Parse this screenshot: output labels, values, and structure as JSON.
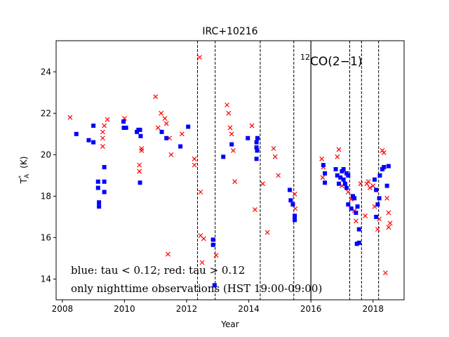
{
  "chart_data": {
    "type": "scatter",
    "title": "IRC+10216",
    "xlabel": "Year",
    "ylabel_main": "T",
    "ylabel_sub": "A",
    "ylabel_sup": "*",
    "ylabel_unit": "(K)",
    "xlim": [
      2007.8,
      2019.0
    ],
    "ylim": [
      13.0,
      25.5
    ],
    "x_ticks": [
      2008,
      2010,
      2012,
      2014,
      2016,
      2018
    ],
    "x_tick_labels": [
      "2008",
      "2010",
      "2012",
      "2014",
      "2016",
      "2018"
    ],
    "y_ticks": [
      14,
      16,
      18,
      20,
      22,
      24
    ],
    "y_tick_labels": [
      "14",
      "16",
      "18",
      "20",
      "22",
      "24"
    ],
    "species_iso": "12",
    "species_label": "CO(2−1)",
    "annotation_lines": [
      "blue: tau < 0.12; red: tau > 0.12",
      "only nighttime observations (HST 19:00-09:00)"
    ],
    "solid_vertical_lines": [
      2016.0
    ],
    "dashed_vertical_lines": [
      2012.35,
      2012.92,
      2014.37,
      2015.45,
      2017.25,
      2017.63,
      2018.18
    ],
    "series": [
      {
        "name": "tau < 0.12",
        "color": "#0000ff",
        "marker": "square",
        "points": [
          [
            2008.45,
            21.0
          ],
          [
            2008.85,
            20.7
          ],
          [
            2009.0,
            20.6
          ],
          [
            2009.0,
            21.4
          ],
          [
            2009.15,
            18.7
          ],
          [
            2009.15,
            18.4
          ],
          [
            2009.18,
            17.7
          ],
          [
            2009.18,
            17.5
          ],
          [
            2009.35,
            19.4
          ],
          [
            2009.35,
            18.7
          ],
          [
            2009.35,
            18.2
          ],
          [
            2009.97,
            21.6
          ],
          [
            2009.98,
            21.3
          ],
          [
            2010.05,
            21.3
          ],
          [
            2010.4,
            21.1
          ],
          [
            2010.45,
            21.2
          ],
          [
            2010.5,
            21.2
          ],
          [
            2010.52,
            20.9
          ],
          [
            2010.5,
            18.65
          ],
          [
            2011.2,
            21.1
          ],
          [
            2011.35,
            20.8
          ],
          [
            2011.8,
            20.4
          ],
          [
            2012.05,
            21.35
          ],
          [
            2012.85,
            15.9
          ],
          [
            2012.85,
            15.65
          ],
          [
            2012.9,
            13.7
          ],
          [
            2013.18,
            19.9
          ],
          [
            2013.45,
            20.5
          ],
          [
            2013.97,
            20.8
          ],
          [
            2014.25,
            20.6
          ],
          [
            2014.28,
            20.8
          ],
          [
            2014.25,
            20.35
          ],
          [
            2014.27,
            20.2
          ],
          [
            2014.25,
            19.8
          ],
          [
            2015.32,
            18.3
          ],
          [
            2015.35,
            17.8
          ],
          [
            2015.42,
            17.6
          ],
          [
            2015.48,
            17.05
          ],
          [
            2015.48,
            16.85
          ],
          [
            2016.4,
            19.5
          ],
          [
            2016.45,
            19.1
          ],
          [
            2016.45,
            18.65
          ],
          [
            2016.8,
            19.3
          ],
          [
            2016.85,
            19.0
          ],
          [
            2016.9,
            18.6
          ],
          [
            2016.95,
            18.9
          ],
          [
            2017.0,
            19.2
          ],
          [
            2017.05,
            19.3
          ],
          [
            2017.05,
            18.8
          ],
          [
            2017.1,
            18.6
          ],
          [
            2017.15,
            18.4
          ],
          [
            2017.15,
            19.1
          ],
          [
            2017.2,
            19.0
          ],
          [
            2017.2,
            17.6
          ],
          [
            2017.3,
            17.4
          ],
          [
            2017.35,
            18.0
          ],
          [
            2017.4,
            17.9
          ],
          [
            2017.45,
            17.2
          ],
          [
            2017.48,
            15.7
          ],
          [
            2017.55,
            15.75
          ],
          [
            2017.55,
            16.4
          ],
          [
            2017.5,
            17.5
          ],
          [
            2018.05,
            18.8
          ],
          [
            2018.1,
            18.3
          ],
          [
            2018.15,
            17.6
          ],
          [
            2018.22,
            19.0
          ],
          [
            2018.3,
            19.3
          ],
          [
            2018.35,
            19.4
          ],
          [
            2018.45,
            18.5
          ],
          [
            2018.5,
            19.45
          ],
          [
            2018.2,
            17.9
          ],
          [
            2018.1,
            17.0
          ]
        ]
      },
      {
        "name": "tau > 0.12",
        "color": "#ff0000",
        "marker": "x",
        "points": [
          [
            2008.25,
            21.8
          ],
          [
            2009.3,
            20.8
          ],
          [
            2009.3,
            20.4
          ],
          [
            2009.3,
            21.1
          ],
          [
            2009.35,
            21.4
          ],
          [
            2009.45,
            21.7
          ],
          [
            2010.0,
            21.75
          ],
          [
            2010.48,
            19.5
          ],
          [
            2010.48,
            19.2
          ],
          [
            2010.55,
            20.2
          ],
          [
            2010.55,
            20.3
          ],
          [
            2011.0,
            22.8
          ],
          [
            2011.08,
            21.3
          ],
          [
            2011.18,
            22.0
          ],
          [
            2011.3,
            21.75
          ],
          [
            2011.35,
            21.5
          ],
          [
            2011.4,
            15.2
          ],
          [
            2011.45,
            20.8
          ],
          [
            2011.5,
            20.0
          ],
          [
            2011.85,
            21.0
          ],
          [
            2012.25,
            19.8
          ],
          [
            2012.25,
            19.5
          ],
          [
            2012.42,
            24.7
          ],
          [
            2012.45,
            18.2
          ],
          [
            2012.45,
            16.1
          ],
          [
            2012.5,
            14.8
          ],
          [
            2012.55,
            15.95
          ],
          [
            2012.95,
            15.15
          ],
          [
            2013.3,
            22.4
          ],
          [
            2013.35,
            22.0
          ],
          [
            2013.4,
            21.3
          ],
          [
            2013.45,
            21.0
          ],
          [
            2013.5,
            20.2
          ],
          [
            2013.55,
            18.7
          ],
          [
            2014.1,
            21.4
          ],
          [
            2014.2,
            17.35
          ],
          [
            2014.45,
            18.6
          ],
          [
            2014.6,
            16.25
          ],
          [
            2014.8,
            20.3
          ],
          [
            2014.85,
            19.9
          ],
          [
            2014.95,
            19.0
          ],
          [
            2015.48,
            18.1
          ],
          [
            2015.5,
            17.4
          ],
          [
            2016.35,
            19.8
          ],
          [
            2016.4,
            19.4
          ],
          [
            2016.38,
            18.9
          ],
          [
            2016.85,
            19.9
          ],
          [
            2016.9,
            20.25
          ],
          [
            2017.0,
            18.5
          ],
          [
            2017.2,
            18.2
          ],
          [
            2017.3,
            17.85
          ],
          [
            2017.4,
            17.3
          ],
          [
            2017.45,
            16.8
          ],
          [
            2017.6,
            18.6
          ],
          [
            2017.75,
            17.05
          ],
          [
            2017.8,
            18.6
          ],
          [
            2017.85,
            18.7
          ],
          [
            2017.9,
            18.4
          ],
          [
            2018.0,
            18.5
          ],
          [
            2018.05,
            17.5
          ],
          [
            2018.15,
            16.4
          ],
          [
            2018.2,
            16.9
          ],
          [
            2018.3,
            20.2
          ],
          [
            2018.35,
            20.1
          ],
          [
            2018.35,
            19.4
          ],
          [
            2018.4,
            14.3
          ],
          [
            2018.45,
            17.9
          ],
          [
            2018.5,
            16.5
          ],
          [
            2018.55,
            16.7
          ],
          [
            2018.5,
            17.2
          ]
        ]
      }
    ]
  }
}
